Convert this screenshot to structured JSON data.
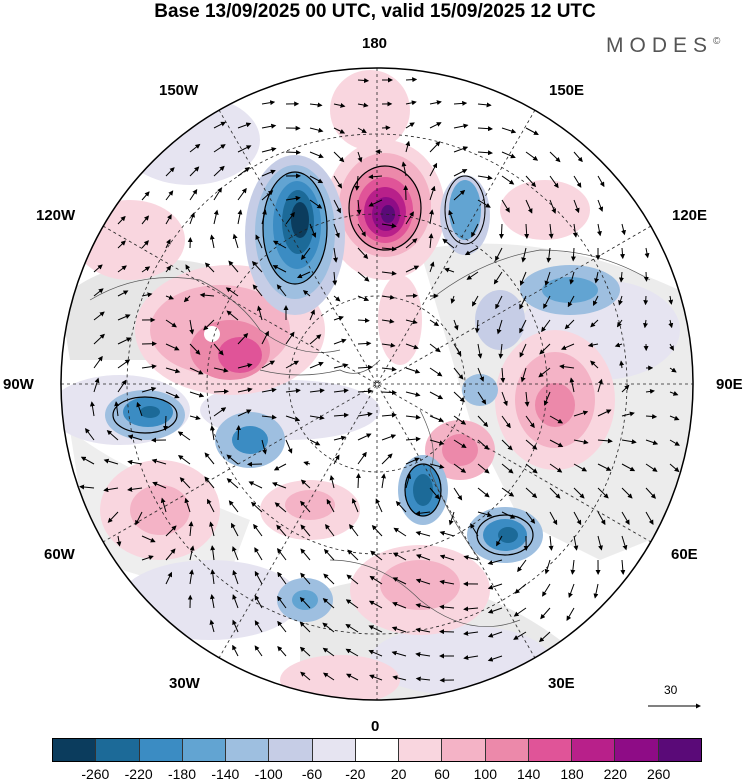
{
  "title": "Base 13/09/2025 00 UTC, valid 15/09/2025 12 UTC",
  "brand": {
    "name": "MODES",
    "mark": "©"
  },
  "map_labels": {
    "n180": "180",
    "w150": "150W",
    "e150": "150E",
    "w120": "120W",
    "e120": "120E",
    "w90": "90W",
    "e90": "90E",
    "w60": "60W",
    "e60": "60E",
    "w30": "30W",
    "e30": "30E",
    "zero": "0"
  },
  "vector_reference": {
    "value": "30"
  },
  "colorbar": {
    "colors": [
      "#0b3c5d",
      "#1c6a98",
      "#3b8cc3",
      "#62a4d2",
      "#9ebfe0",
      "#c6cde6",
      "#e6e4f1",
      "#ffffff",
      "#f9d6df",
      "#f4b3c6",
      "#ec89aa",
      "#e05498",
      "#b8208a",
      "#8e0c86",
      "#5a0a78"
    ],
    "ticks": [
      "-260",
      "-220",
      "-180",
      "-140",
      "-100",
      "-60",
      "-20",
      "20",
      "60",
      "100",
      "140",
      "180",
      "220",
      "260"
    ]
  }
}
